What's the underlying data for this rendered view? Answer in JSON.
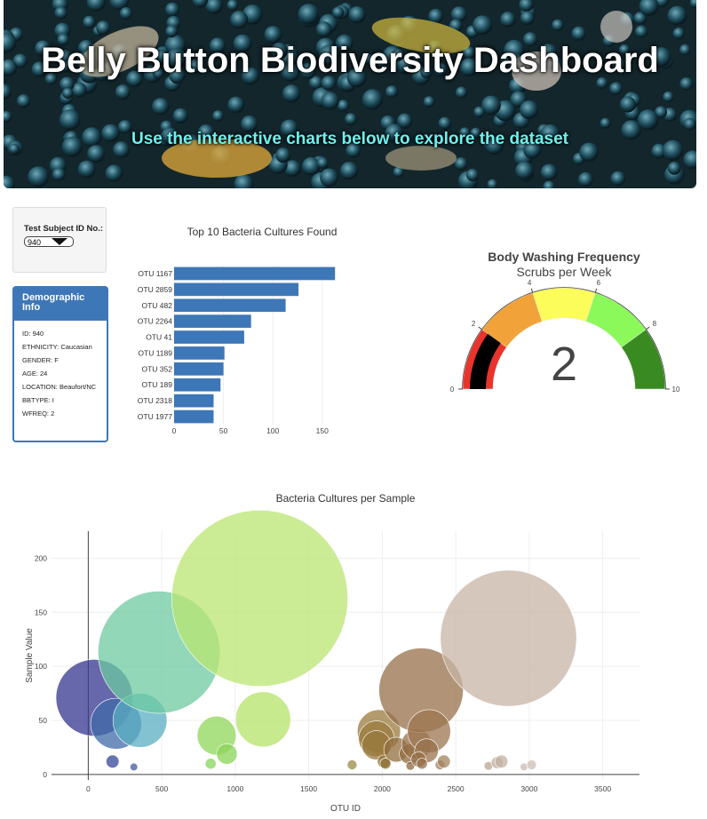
{
  "header": {
    "title": "Belly Button Biodiversity Dashboard",
    "subtitle": "Use the interactive charts below to explore the dataset"
  },
  "selector": {
    "label": "Test Subject ID No.:",
    "value": "940"
  },
  "demographics": {
    "title": "Demographic Info",
    "rows": [
      "ID: 940",
      "ETHNICITY: Caucasian",
      "GENDER: F",
      "AGE: 24",
      "LOCATION: Beaufort/NC",
      "BBTYPE: I",
      "WFREQ: 2"
    ]
  },
  "colors": {
    "bar": "#3e77b8",
    "panel": "#3e77b8",
    "subtitle": "#6ff0ee"
  },
  "chart_data": [
    {
      "type": "bar",
      "orientation": "horizontal",
      "title": "Top 10 Bacteria Cultures Found",
      "categories": [
        "OTU 1167",
        "OTU 2859",
        "OTU 482",
        "OTU 2264",
        "OTU 41",
        "OTU 1189",
        "OTU 352",
        "OTU 189",
        "OTU 2318",
        "OTU 1977"
      ],
      "values": [
        163,
        126,
        113,
        78,
        71,
        51,
        50,
        47,
        40,
        40
      ],
      "xlim": [
        0,
        170
      ],
      "xticks": [
        0,
        50,
        100,
        150
      ]
    },
    {
      "type": "gauge",
      "title": "Body Washing Frequency",
      "subtitle": "Scrubs per Week",
      "value": 2,
      "range": [
        0,
        10
      ],
      "ticks": [
        0,
        2,
        4,
        6,
        8,
        10
      ],
      "steps": [
        {
          "range": [
            0,
            2
          ],
          "color": "#e8342b"
        },
        {
          "range": [
            2,
            4
          ],
          "color": "#f1a33a"
        },
        {
          "range": [
            4,
            6
          ],
          "color": "#fcfc5a"
        },
        {
          "range": [
            6,
            8
          ],
          "color": "#8cf95a"
        },
        {
          "range": [
            8,
            10
          ],
          "color": "#3a8a22"
        }
      ],
      "bar_color": "#000000"
    },
    {
      "type": "scatter",
      "title": "Bacteria Cultures per Sample",
      "xlabel": "OTU ID",
      "ylabel": "Sample Value",
      "xlim": [
        -250,
        3750
      ],
      "ylim": [
        -5,
        225
      ],
      "xticks": [
        0,
        500,
        1000,
        1500,
        2000,
        2500,
        3000,
        3500
      ],
      "yticks": [
        0,
        50,
        100,
        150,
        200
      ],
      "grid": true,
      "points": [
        {
          "x": 41,
          "y": 71,
          "color": "#34348f"
        },
        {
          "x": 189,
          "y": 47,
          "color": "#3f6aa8"
        },
        {
          "x": 352,
          "y": 50,
          "color": "#59adc0"
        },
        {
          "x": 482,
          "y": 113,
          "color": "#6ccaa0"
        },
        {
          "x": 1167,
          "y": 163,
          "color": "#b9e571"
        },
        {
          "x": 1189,
          "y": 51,
          "color": "#b4e36a"
        },
        {
          "x": 873,
          "y": 36,
          "color": "#8fd65a"
        },
        {
          "x": 943,
          "y": 19,
          "color": "#88d455"
        },
        {
          "x": 165,
          "y": 12,
          "color": "#36449a"
        },
        {
          "x": 310,
          "y": 7,
          "color": "#3f5aa2"
        },
        {
          "x": 833,
          "y": 10,
          "color": "#86d65a"
        },
        {
          "x": 1795,
          "y": 9,
          "color": "#9b8a48"
        },
        {
          "x": 1977,
          "y": 40,
          "color": "#9b7a3c"
        },
        {
          "x": 1960,
          "y": 33,
          "color": "#9a7b3c"
        },
        {
          "x": 1960,
          "y": 27,
          "color": "#98783c"
        },
        {
          "x": 2011,
          "y": 12,
          "color": "#8e7036"
        },
        {
          "x": 2022,
          "y": 10,
          "color": "#8d6f35"
        },
        {
          "x": 2095,
          "y": 23,
          "color": "#916e3e"
        },
        {
          "x": 2186,
          "y": 19,
          "color": "#8f6b3e"
        },
        {
          "x": 2191,
          "y": 8,
          "color": "#8c693d"
        },
        {
          "x": 2234,
          "y": 28,
          "color": "#936e44"
        },
        {
          "x": 2264,
          "y": 78,
          "color": "#97704a"
        },
        {
          "x": 2318,
          "y": 40,
          "color": "#9c7550"
        },
        {
          "x": 2301,
          "y": 22,
          "color": "#98734d"
        },
        {
          "x": 2247,
          "y": 14,
          "color": "#946f48"
        },
        {
          "x": 2270,
          "y": 10,
          "color": "#936e46"
        },
        {
          "x": 2393,
          "y": 9,
          "color": "#a07f5e"
        },
        {
          "x": 2419,
          "y": 12,
          "color": "#a3835f"
        },
        {
          "x": 2859,
          "y": 126,
          "color": "#c8b4a6"
        },
        {
          "x": 2722,
          "y": 8,
          "color": "#bba693"
        },
        {
          "x": 2782,
          "y": 11,
          "color": "#c0ac9b"
        },
        {
          "x": 2811,
          "y": 12,
          "color": "#c3b0a0"
        },
        {
          "x": 2964,
          "y": 7,
          "color": "#cbbbb0"
        },
        {
          "x": 3016,
          "y": 9,
          "color": "#cebfb5"
        }
      ]
    }
  ]
}
